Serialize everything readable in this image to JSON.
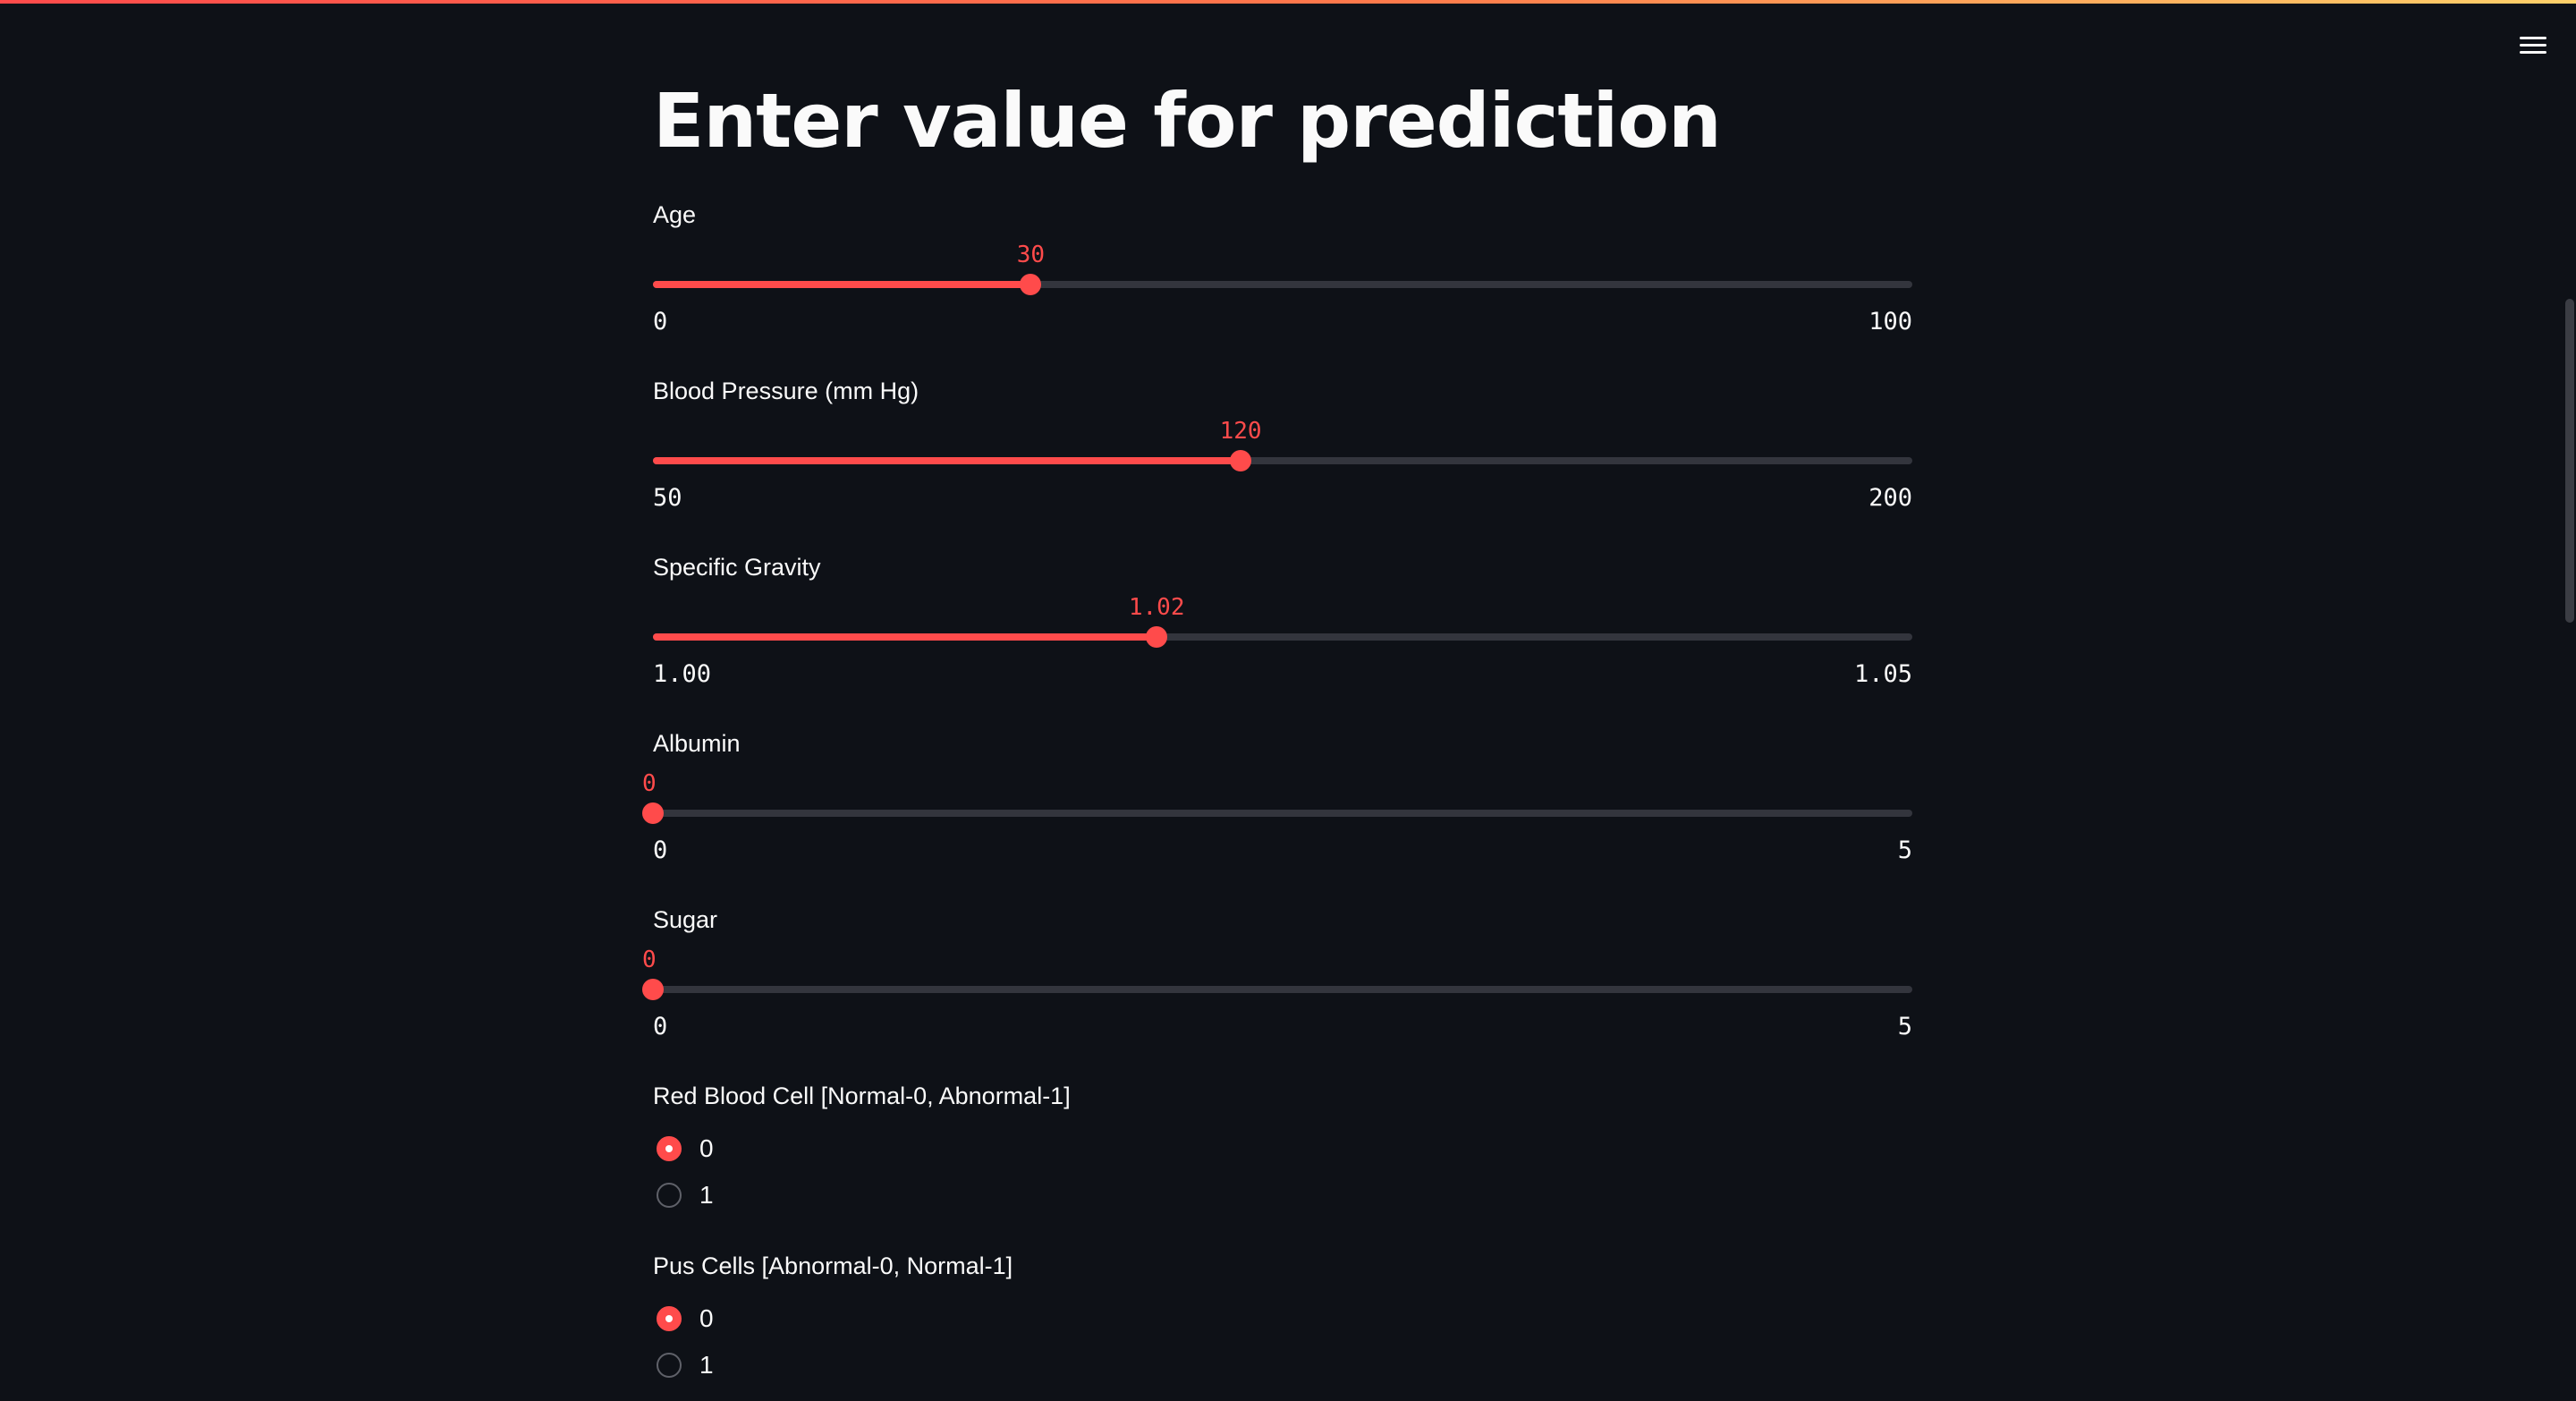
{
  "page": {
    "title": "Enter value for prediction",
    "accent_color": "#ff4b4b",
    "background_color": "#0e1117",
    "menu_icon": "hamburger-menu-icon"
  },
  "sliders": [
    {
      "label": "Age",
      "value": "30",
      "value_num": 30,
      "min": "0",
      "min_num": 0,
      "max": "100",
      "max_num": 100
    },
    {
      "label": "Blood Pressure (mm Hg)",
      "value": "120",
      "value_num": 120,
      "min": "50",
      "min_num": 50,
      "max": "200",
      "max_num": 200
    },
    {
      "label": "Specific Gravity",
      "value": "1.02",
      "value_num": 1.02,
      "min": "1.00",
      "min_num": 1.0,
      "max": "1.05",
      "max_num": 1.05
    },
    {
      "label": "Albumin",
      "value": "0",
      "value_num": 0,
      "min": "0",
      "min_num": 0,
      "max": "5",
      "max_num": 5
    },
    {
      "label": "Sugar",
      "value": "0",
      "value_num": 0,
      "min": "0",
      "min_num": 0,
      "max": "5",
      "max_num": 5
    }
  ],
  "radios": [
    {
      "label": "Red Blood Cell [Normal-0, Abnormal-1]",
      "options": [
        "0",
        "1"
      ],
      "selected": "0"
    },
    {
      "label": "Pus Cells [Abnormal-0, Normal-1]",
      "options": [
        "0",
        "1"
      ],
      "selected": "0"
    }
  ]
}
